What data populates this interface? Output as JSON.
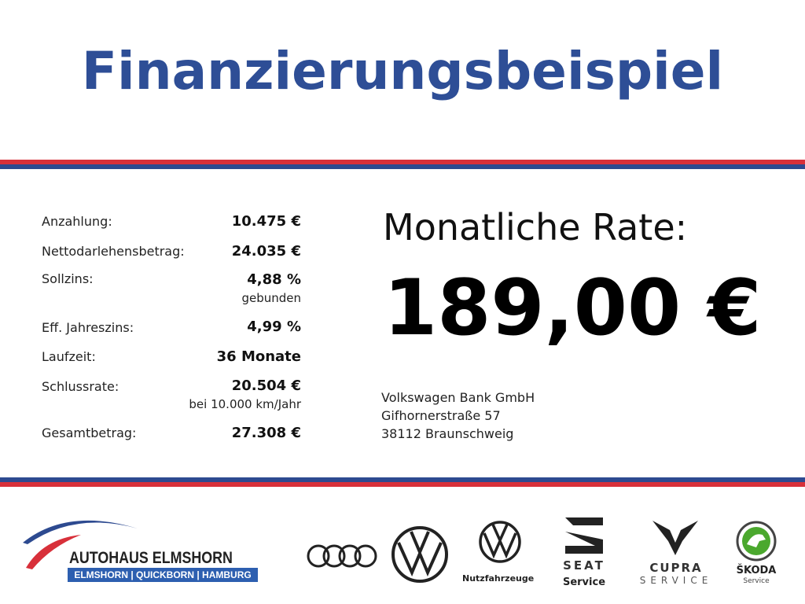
{
  "title": "Finanzierungsbeispiel",
  "colors": {
    "title": "#2e4e96",
    "red": "#d8303a",
    "blue": "#2d4a90"
  },
  "details": [
    {
      "label": "Anzahlung:",
      "value": "10.475 €"
    },
    {
      "label": "Nettodarlehensbetrag:",
      "value": "24.035 €"
    },
    {
      "label": "Sollzins:",
      "value": "4,88 %",
      "note": "gebunden"
    },
    {
      "label": "Eff. Jahreszins:",
      "value": "4,99 %"
    },
    {
      "label": "Laufzeit:",
      "value": "36 Monate"
    },
    {
      "label": "Schlussrate:",
      "value": "20.504 €",
      "note": "bei 10.000 km/Jahr"
    },
    {
      "label": "Gesamtbetrag:",
      "value": "27.308 €"
    }
  ],
  "rate": {
    "label": "Monatliche Rate:",
    "value": "189,00 €"
  },
  "bank": {
    "name": "Volkswagen Bank GmbH",
    "street": "Gifhornerstraße 57",
    "city": "38112 Braunschweig"
  },
  "footer": {
    "dealer": {
      "name": "AUTOHAUS ELMSHORN",
      "locations": "ELMSHORN | QUICKBORN | HAMBURG"
    },
    "brands": {
      "vwn": "Nutzfahrzeuge",
      "seat": "SEAT",
      "seat_sub": "Service",
      "cupra": "CUPRA",
      "cupra_sub": "SERVICE",
      "skoda": "ŠKODA",
      "skoda_sub": "Service"
    }
  }
}
